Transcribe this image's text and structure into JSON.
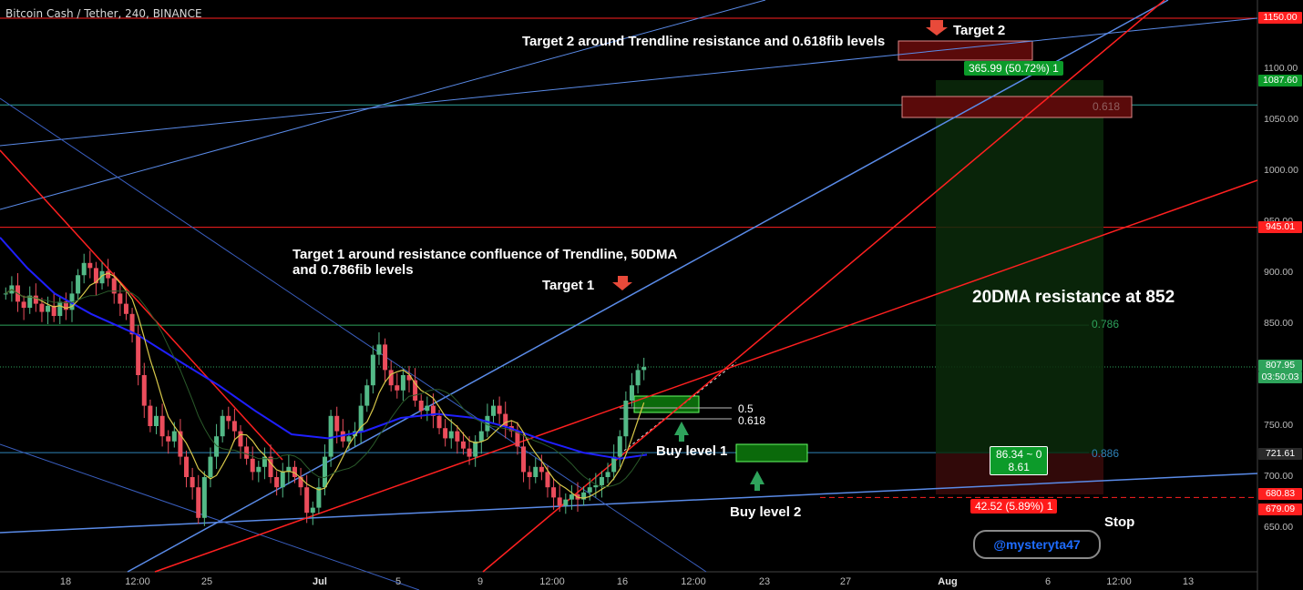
{
  "header": {
    "symbol": "Bitcoin Cash / Tether, 240, BINANCE"
  },
  "annotations": {
    "target2": "Target 2",
    "target2_note": "Target 2 around Trendline resistance and 0.618fib levels",
    "target1": "Target 1",
    "target1_note_l1": "Target 1 around resistance confluence of Trendline, 50DMA",
    "target1_note_l2": "and 0.786fib levels",
    "dma20": "20DMA resistance at 852",
    "buy1": "Buy level 1",
    "buy2": "Buy level 2",
    "stop": "Stop",
    "watermark": "@mysteryta47"
  },
  "position_tool": {
    "target_label": "365.99 (50.72%) 1",
    "mid_label_l1": "86.34 ~ 0",
    "mid_label_l2": "8.61",
    "stop_label": "42.52 (5.89%) 1"
  },
  "fib_labels": {
    "f0618_top": "0.618",
    "f0786": "0.786",
    "f0886": "0.886",
    "f05": "0.5",
    "f0618_small": "0.618"
  },
  "price_tags": {
    "p1150": "1150.00",
    "p1087": "1087.60",
    "p945": "945.01",
    "p807": "807.95",
    "countdown": "03:50:03",
    "p721": "721.61",
    "p680": "680.83",
    "p679": "679.09"
  },
  "colors": {
    "bull": "#53b987",
    "bear": "#eb4d5c",
    "ma50": "#1f1fff",
    "ma20": "#d8c84a",
    "red_line": "#ff2020",
    "blue_line": "#5a8be8"
  },
  "chart_data": {
    "type": "candlestick",
    "title": "Bitcoin Cash / Tether, 240, BINANCE",
    "ylim": [
      625,
      1175
    ],
    "yticks": [
      "1150.00",
      "1100.00",
      "1050.00",
      "1000.00",
      "950.00",
      "900.00",
      "850.00",
      "800.00",
      "750.00",
      "700.00",
      "650.00"
    ],
    "xticks": [
      "18",
      "12:00",
      "25",
      "Jul",
      "5",
      "9",
      "12:00",
      "16",
      "12:00",
      "23",
      "27",
      "Aug",
      "6",
      "12:00",
      "13"
    ],
    "horizontal_levels": [
      {
        "price": 1150,
        "color": "#ff2020"
      },
      {
        "price": 1065,
        "color": "#2ea39b"
      },
      {
        "price": 945,
        "color": "#ff2020"
      },
      {
        "price": 849,
        "color": "#2ea35b"
      },
      {
        "price": 808,
        "color": "#2ea35b",
        "style": "dotted"
      },
      {
        "price": 724,
        "color": "#2f83b8"
      },
      {
        "price": 680,
        "color": "#ff2020",
        "style": "dashed"
      }
    ],
    "price_path": [
      880,
      888,
      872,
      866,
      878,
      870,
      862,
      868,
      858,
      872,
      864,
      880,
      898,
      910,
      905,
      890,
      902,
      895,
      880,
      870,
      860,
      840,
      800,
      770,
      750,
      760,
      740,
      735,
      745,
      720,
      700,
      690,
      660,
      700,
      720,
      740,
      760,
      755,
      745,
      730,
      718,
      705,
      710,
      720,
      700,
      690,
      705,
      710,
      700,
      690,
      665,
      670,
      690,
      720,
      760,
      745,
      735,
      740,
      745,
      770,
      790,
      820,
      830,
      805,
      790,
      785,
      800,
      795,
      775,
      765,
      770,
      760,
      748,
      738,
      745,
      735,
      728,
      720,
      735,
      745,
      760,
      770,
      762,
      750,
      745,
      730,
      705,
      700,
      710,
      705,
      690,
      680,
      672,
      678,
      683,
      678,
      685,
      690,
      692,
      700,
      705,
      720,
      740,
      775,
      790,
      805,
      808
    ]
  }
}
